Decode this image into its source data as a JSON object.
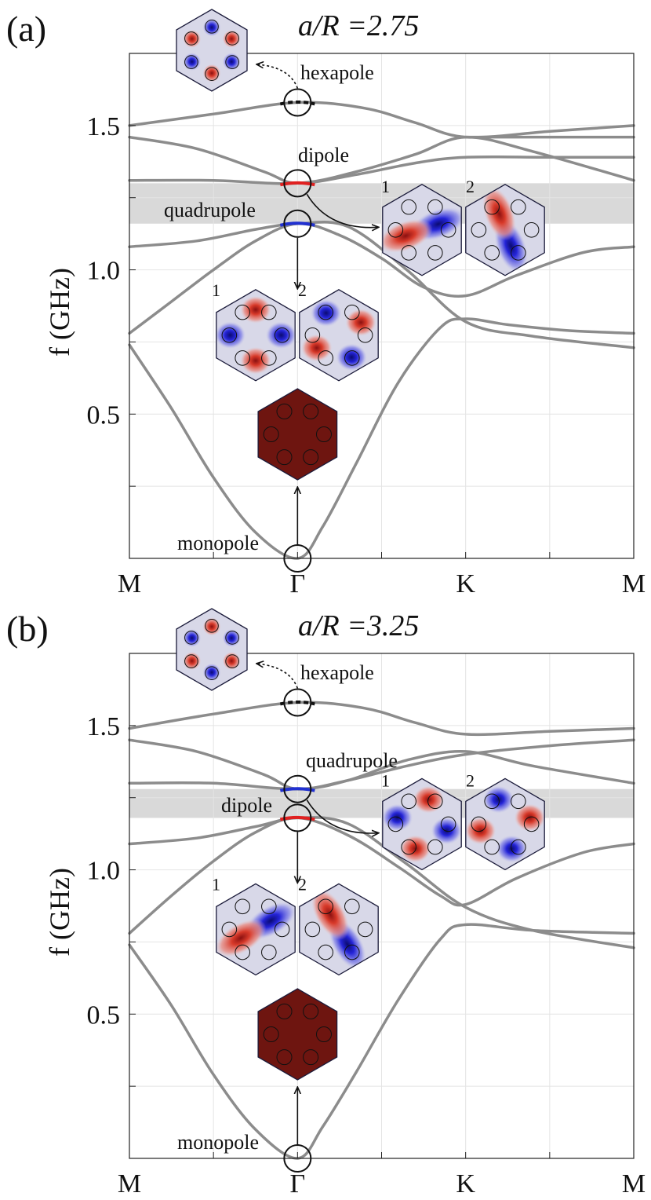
{
  "colors": {
    "curve": "#8c8c8c",
    "band": "#d9d9d9",
    "dipole": "#e02020",
    "quadrupole": "#2030d0",
    "hexapole": "#111111",
    "monopole_field": "#6e1510",
    "field_red": "#d83a2a",
    "field_blue": "#2424d8",
    "field_base": "#d8d8e8"
  },
  "chart_data": [
    {
      "type": "line",
      "panel_label": "(a)",
      "title": "a/R =2.75",
      "ylabel": "f (GHz)",
      "x_ticks": [
        "M",
        "Γ",
        "K",
        "M"
      ],
      "ylim": [
        0,
        1.75
      ],
      "y_ticks": [
        "0.5",
        "1.0",
        "1.5"
      ],
      "bandgap": [
        1.16,
        1.3
      ],
      "series": [
        {
          "points": [
            [
              0,
              0.74
            ],
            [
              0.25,
              0.52
            ],
            [
              0.5,
              0.28
            ],
            [
              0.75,
              0.09
            ],
            [
              1,
              0.0
            ],
            [
              1.15,
              0.11
            ],
            [
              1.35,
              0.33
            ],
            [
              1.6,
              0.61
            ],
            [
              1.85,
              0.8
            ],
            [
              2,
              0.83
            ],
            [
              2.25,
              0.81
            ],
            [
              2.6,
              0.79
            ],
            [
              3,
              0.78
            ]
          ]
        },
        {
          "points": [
            [
              0,
              0.78
            ],
            [
              0.25,
              0.89
            ],
            [
              0.5,
              1.0
            ],
            [
              0.75,
              1.1
            ],
            [
              1,
              1.16
            ],
            [
              1.25,
              1.12
            ],
            [
              1.5,
              1.04
            ],
            [
              1.75,
              0.94
            ],
            [
              2,
              0.91
            ],
            [
              2.3,
              0.98
            ],
            [
              2.7,
              1.06
            ],
            [
              3,
              1.08
            ]
          ]
        },
        {
          "points": [
            [
              0,
              1.08
            ],
            [
              0.4,
              1.1
            ],
            [
              0.75,
              1.14
            ],
            [
              1,
              1.16
            ],
            [
              1.3,
              1.15
            ],
            [
              1.65,
              1.0
            ],
            [
              2,
              0.82
            ],
            [
              2.4,
              0.77
            ],
            [
              3,
              0.73
            ]
          ]
        },
        {
          "points": [
            [
              0,
              1.31
            ],
            [
              0.5,
              1.31
            ],
            [
              1,
              1.3
            ],
            [
              1.35,
              1.34
            ],
            [
              1.7,
              1.4
            ],
            [
              2,
              1.46
            ],
            [
              2.4,
              1.41
            ],
            [
              3,
              1.31
            ]
          ]
        },
        {
          "points": [
            [
              0,
              1.46
            ],
            [
              0.4,
              1.42
            ],
            [
              0.8,
              1.34
            ],
            [
              1,
              1.3
            ],
            [
              1.35,
              1.33
            ],
            [
              1.7,
              1.37
            ],
            [
              2,
              1.39
            ],
            [
              2.5,
              1.39
            ],
            [
              3,
              1.39
            ]
          ]
        },
        {
          "points": [
            [
              0,
              1.5
            ],
            [
              0.5,
              1.54
            ],
            [
              1,
              1.58
            ],
            [
              1.4,
              1.56
            ],
            [
              1.7,
              1.51
            ],
            [
              2,
              1.46
            ],
            [
              2.5,
              1.48
            ],
            [
              3,
              1.5
            ]
          ]
        },
        {
          "points": [
            [
              2,
              1.46
            ],
            [
              2.5,
              1.46
            ],
            [
              3,
              1.46
            ]
          ]
        }
      ],
      "modes": [
        {
          "name": "hexapole",
          "f": 1.58
        },
        {
          "name": "dipole",
          "f": 1.3
        },
        {
          "name": "quadrupole",
          "f": 1.16
        },
        {
          "name": "monopole",
          "f": 0.0
        }
      ],
      "insets": [
        {
          "label": "1",
          "pattern": "quadrupole"
        },
        {
          "label": "2",
          "pattern": "quadrupole"
        },
        {
          "label": "1",
          "pattern": "dipole"
        },
        {
          "label": "2",
          "pattern": "dipole"
        }
      ]
    },
    {
      "type": "line",
      "panel_label": "(b)",
      "title": "a/R =3.25",
      "ylabel": "f (GHz)",
      "x_ticks": [
        "M",
        "Γ",
        "K",
        "M"
      ],
      "ylim": [
        0,
        1.75
      ],
      "y_ticks": [
        "0.5",
        "1.0",
        "1.5"
      ],
      "bandgap": [
        1.18,
        1.28
      ],
      "series": [
        {
          "points": [
            [
              0,
              0.74
            ],
            [
              0.25,
              0.53
            ],
            [
              0.5,
              0.29
            ],
            [
              0.75,
              0.1
            ],
            [
              1,
              0.0
            ],
            [
              1.15,
              0.11
            ],
            [
              1.35,
              0.3
            ],
            [
              1.6,
              0.55
            ],
            [
              1.85,
              0.76
            ],
            [
              2,
              0.81
            ],
            [
              2.4,
              0.79
            ],
            [
              3,
              0.78
            ]
          ]
        },
        {
          "points": [
            [
              0,
              0.78
            ],
            [
              0.25,
              0.91
            ],
            [
              0.5,
              1.03
            ],
            [
              0.75,
              1.13
            ],
            [
              1,
              1.18
            ],
            [
              1.3,
              1.12
            ],
            [
              1.6,
              1.01
            ],
            [
              1.85,
              0.91
            ],
            [
              2,
              0.88
            ],
            [
              2.3,
              0.97
            ],
            [
              2.7,
              1.06
            ],
            [
              3,
              1.09
            ]
          ]
        },
        {
          "points": [
            [
              0,
              1.09
            ],
            [
              0.4,
              1.11
            ],
            [
              0.75,
              1.15
            ],
            [
              1,
              1.18
            ],
            [
              1.3,
              1.16
            ],
            [
              1.65,
              1.02
            ],
            [
              2,
              0.87
            ],
            [
              2.4,
              0.79
            ],
            [
              3,
              0.73
            ]
          ]
        },
        {
          "points": [
            [
              0,
              1.3
            ],
            [
              0.5,
              1.3
            ],
            [
              1,
              1.28
            ],
            [
              1.3,
              1.31
            ],
            [
              1.65,
              1.38
            ],
            [
              2,
              1.41
            ],
            [
              2.4,
              1.36
            ],
            [
              3,
              1.3
            ]
          ]
        },
        {
          "points": [
            [
              0,
              1.45
            ],
            [
              0.4,
              1.41
            ],
            [
              0.8,
              1.33
            ],
            [
              1,
              1.28
            ],
            [
              1.3,
              1.31
            ],
            [
              1.65,
              1.36
            ],
            [
              2,
              1.4
            ],
            [
              2.5,
              1.43
            ],
            [
              3,
              1.45
            ]
          ]
        },
        {
          "points": [
            [
              0,
              1.49
            ],
            [
              0.5,
              1.54
            ],
            [
              1,
              1.58
            ],
            [
              1.4,
              1.56
            ],
            [
              1.7,
              1.51
            ],
            [
              2,
              1.47
            ],
            [
              2.5,
              1.48
            ],
            [
              3,
              1.49
            ]
          ]
        }
      ],
      "modes": [
        {
          "name": "hexapole",
          "f": 1.58
        },
        {
          "name": "quadrupole",
          "f": 1.28
        },
        {
          "name": "dipole",
          "f": 1.18
        },
        {
          "name": "monopole",
          "f": 0.0
        }
      ],
      "insets": [
        {
          "label": "1",
          "pattern": "dipole"
        },
        {
          "label": "2",
          "pattern": "dipole"
        },
        {
          "label": "1",
          "pattern": "quadrupole"
        },
        {
          "label": "2",
          "pattern": "quadrupole"
        }
      ]
    }
  ]
}
